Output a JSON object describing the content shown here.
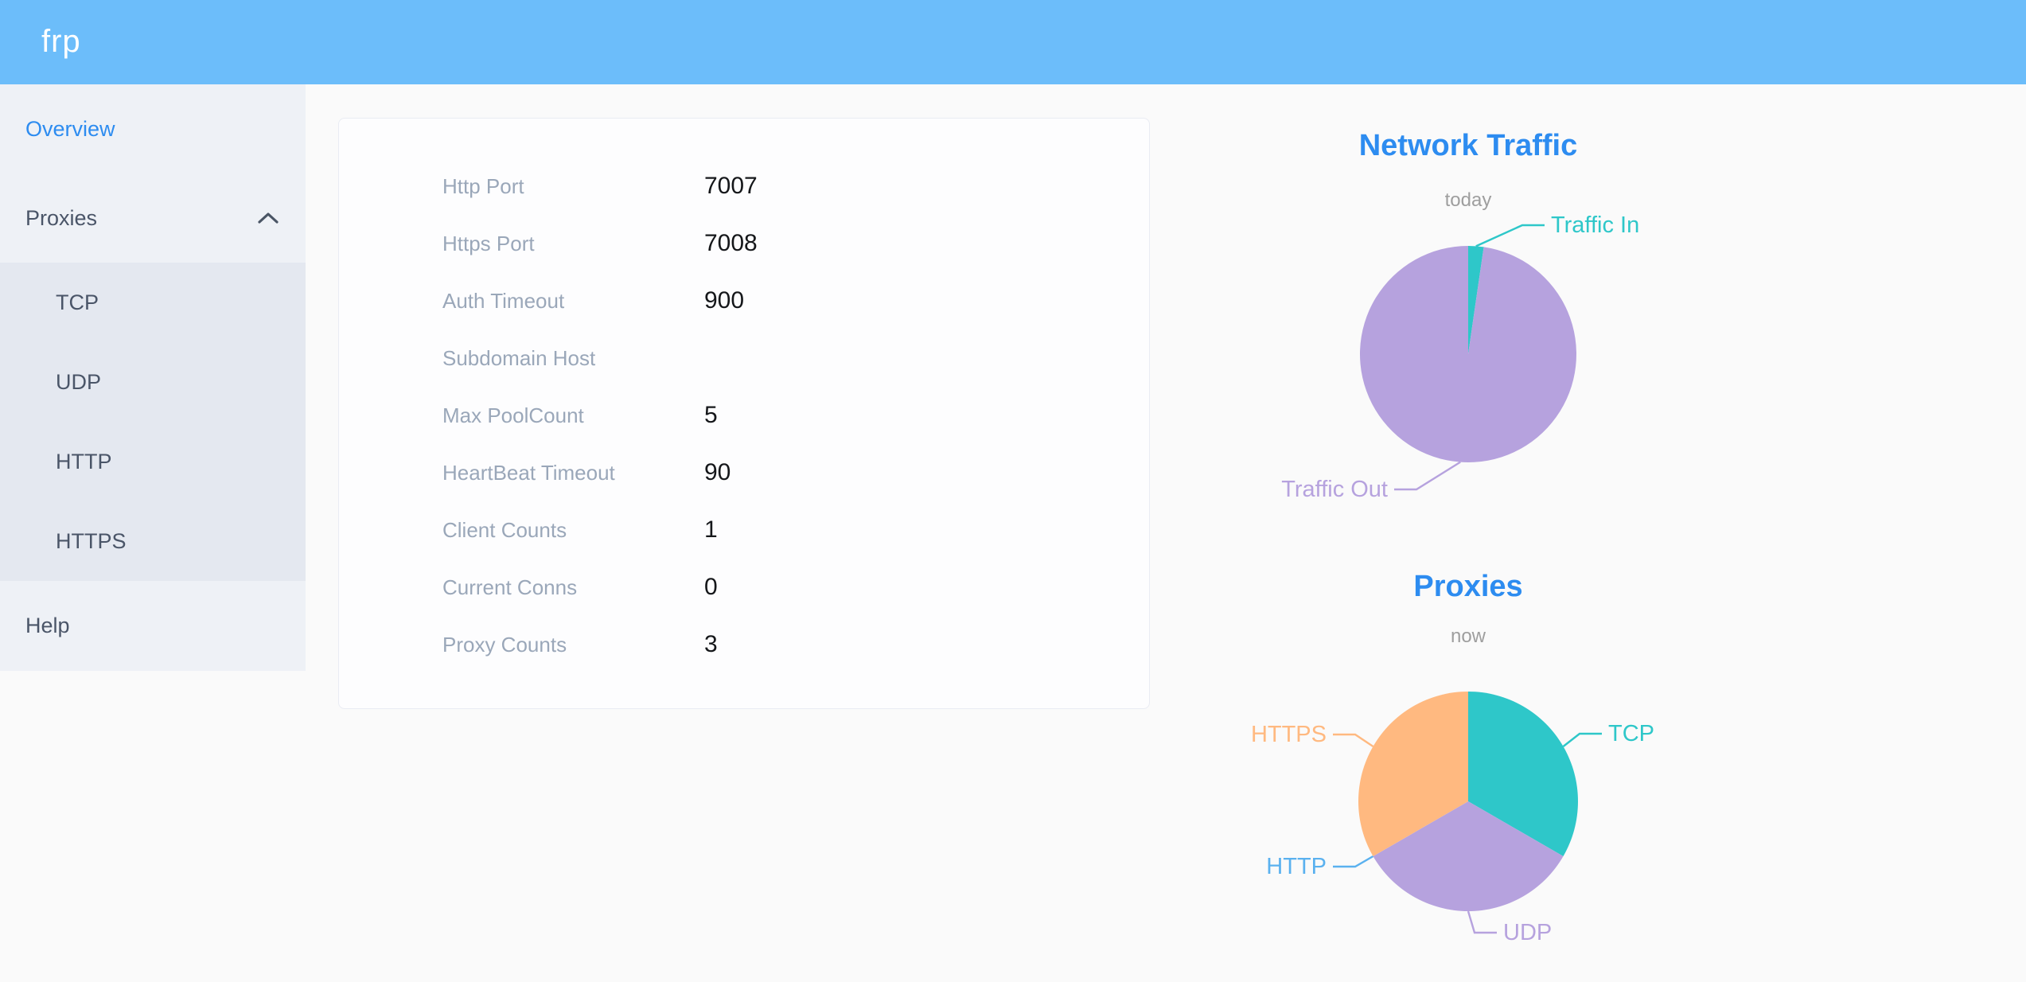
{
  "header": {
    "logo": "frp",
    "bg_color": "#6cbdfa"
  },
  "sidebar": {
    "items": [
      {
        "label": "Overview",
        "active": true
      },
      {
        "label": "Proxies",
        "expanded": true,
        "children": [
          "TCP",
          "UDP",
          "HTTP",
          "HTTPS"
        ]
      },
      {
        "label": "Help"
      }
    ],
    "active_color": "#2d8cf0",
    "text_color": "#4a5568"
  },
  "server_info": {
    "rows": [
      {
        "label": "Http Port",
        "value": "7007"
      },
      {
        "label": "Https Port",
        "value": "7008"
      },
      {
        "label": "Auth Timeout",
        "value": "900"
      },
      {
        "label": "Subdomain Host",
        "value": ""
      },
      {
        "label": "Max PoolCount",
        "value": "5"
      },
      {
        "label": "HeartBeat Timeout",
        "value": "90"
      },
      {
        "label": "Client Counts",
        "value": "1"
      },
      {
        "label": "Current Conns",
        "value": "0"
      },
      {
        "label": "Proxy Counts",
        "value": "3"
      }
    ]
  },
  "chart_data": [
    {
      "type": "pie",
      "title": "Network Traffic",
      "subtitle": "today",
      "legend_position": "callout-labels",
      "slices": [
        {
          "name": "Traffic In",
          "value": 2.3,
          "unit": "percent",
          "color": "#2ec7c9"
        },
        {
          "name": "Traffic Out",
          "value": 97.7,
          "unit": "percent",
          "color": "#b6a2de"
        }
      ]
    },
    {
      "type": "pie",
      "title": "Proxies",
      "subtitle": "now",
      "legend_position": "callout-labels",
      "slices": [
        {
          "name": "TCP",
          "value": 1,
          "unit": "count",
          "color": "#2ec7c9"
        },
        {
          "name": "UDP",
          "value": 1,
          "unit": "count",
          "color": "#b6a2de"
        },
        {
          "name": "HTTP",
          "value": 0,
          "unit": "count",
          "color": "#5ab1ef"
        },
        {
          "name": "HTTPS",
          "value": 1,
          "unit": "count",
          "color": "#ffb980"
        }
      ]
    }
  ],
  "colors": {
    "title_blue": "#2d8cf0",
    "subtitle_gray": "#9e9e9e",
    "sidebar_bg": "#eef1f6",
    "submenu_bg": "#e4e8f0",
    "card_label_gray": "#9aa7b9"
  }
}
